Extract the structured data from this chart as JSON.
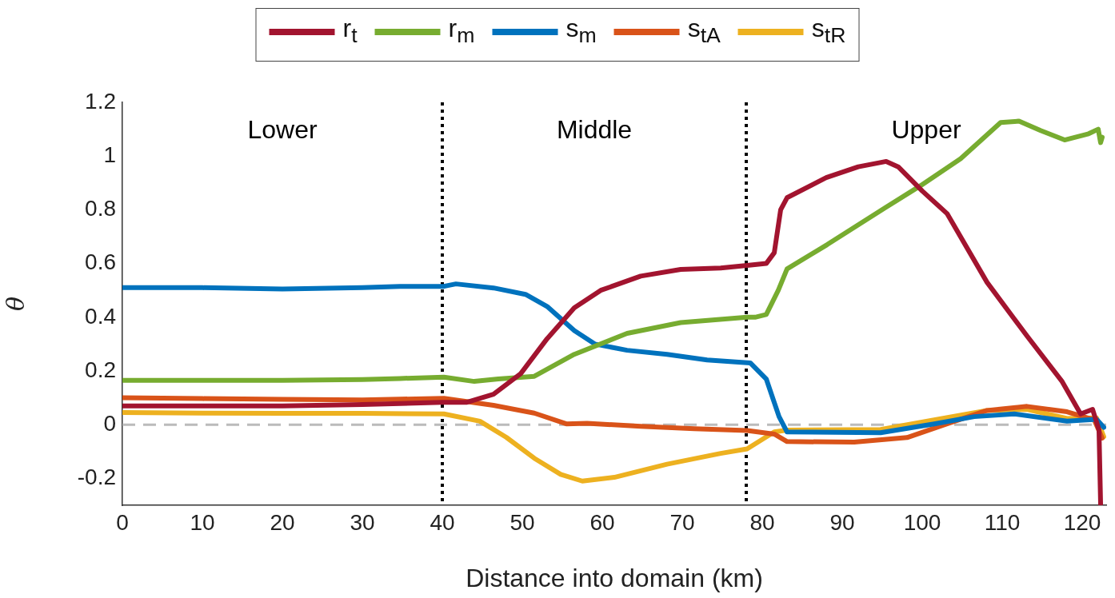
{
  "chart_data": {
    "type": "line",
    "xlabel": "Distance into domain (km)",
    "ylabel": "θ",
    "xlim": [
      0,
      123
    ],
    "xticks": [
      0,
      10,
      20,
      30,
      40,
      50,
      60,
      70,
      80,
      90,
      100,
      110,
      120
    ],
    "ylim": [
      -0.3,
      1.2
    ],
    "yticks": [
      -0.2,
      0,
      0.2,
      0.4,
      0.6,
      0.8,
      1,
      1.2
    ],
    "grid": false,
    "legend": "top",
    "marker": "none",
    "line_style": "solid",
    "ref_lines": [
      {
        "axis": "x",
        "value": 40,
        "color": "#000000",
        "line_style": "dotted"
      },
      {
        "axis": "x",
        "value": 78,
        "color": "#000000",
        "line_style": "dotted"
      },
      {
        "axis": "y",
        "value": 0,
        "color": "#bbbbbb",
        "line_style": "dashed"
      }
    ],
    "annotations": [
      "Lower",
      "Middle",
      "Upper"
    ],
    "series": [
      {
        "name": "r$_{t}$",
        "color": "#a2142f",
        "x": [
          0,
          10,
          20,
          30,
          40,
          43,
          46.4,
          49.8,
          53.1,
          56.5,
          59.8,
          64.8,
          69.8,
          74.8,
          78.1,
          80.5,
          81.5,
          82.3,
          83.1,
          88,
          92,
          95.5,
          97,
          100,
          103.1,
          108.1,
          113.1,
          117.5,
          119.8,
          121.3,
          122.1,
          122.3
        ],
        "values": [
          0.07,
          0.07,
          0.07,
          0.075,
          0.083,
          0.083,
          0.113,
          0.19,
          0.32,
          0.435,
          0.5,
          0.553,
          0.578,
          0.583,
          0.593,
          0.6,
          0.64,
          0.8,
          0.845,
          0.92,
          0.96,
          0.98,
          0.96,
          0.87,
          0.786,
          0.53,
          0.33,
          0.16,
          0.04,
          0.057,
          -0.02,
          -0.295
        ]
      },
      {
        "name": "r$_{m}$",
        "color": "#77ac30",
        "x": [
          0,
          10,
          20,
          30,
          34.7,
          40.2,
          44,
          47,
          51.5,
          56.5,
          63.1,
          69.8,
          78.1,
          79.1,
          80.5,
          82,
          83.1,
          88.1,
          95.5,
          99.8,
          104.8,
          109.8,
          112.1,
          114.8,
          117.8,
          120.8,
          122,
          122.3,
          122.5
        ],
        "values": [
          0.165,
          0.165,
          0.165,
          0.168,
          0.172,
          0.177,
          0.161,
          0.17,
          0.18,
          0.262,
          0.34,
          0.38,
          0.4,
          0.4,
          0.41,
          0.5,
          0.58,
          0.67,
          0.81,
          0.89,
          0.99,
          1.125,
          1.13,
          1.095,
          1.06,
          1.083,
          1.1,
          1.05,
          1.07
        ]
      },
      {
        "name": "s$_{m}$",
        "color": "#0072bd",
        "x": [
          0,
          10,
          20,
          30,
          34.7,
          40.2,
          41.7,
          46.4,
          50.4,
          53.1,
          56.5,
          59.1,
          63.1,
          68.1,
          73.1,
          78.5,
          80.5,
          82.1,
          83.1,
          94.8,
          101.5,
          106.5,
          111.5,
          118.1,
          121.8,
          122.7
        ],
        "values": [
          0.51,
          0.51,
          0.505,
          0.51,
          0.515,
          0.515,
          0.524,
          0.509,
          0.485,
          0.44,
          0.35,
          0.3,
          0.277,
          0.262,
          0.241,
          0.23,
          0.17,
          0.03,
          -0.027,
          -0.03,
          0.003,
          0.03,
          0.04,
          0.013,
          0.02,
          -0.01
        ]
      },
      {
        "name": "s$_{tA}$",
        "color": "#d95319",
        "x": [
          0,
          10,
          20,
          30,
          34.7,
          40.2,
          46.4,
          51.5,
          55.5,
          58.1,
          64.8,
          71.5,
          78.1,
          81.5,
          83.1,
          91.5,
          98.1,
          103.1,
          108.1,
          113.1,
          118.1,
          121.5,
          122.5
        ],
        "values": [
          0.1,
          0.097,
          0.094,
          0.092,
          0.095,
          0.098,
          0.072,
          0.043,
          0.003,
          0.005,
          -0.006,
          -0.015,
          -0.022,
          -0.035,
          -0.063,
          -0.065,
          -0.048,
          0.003,
          0.053,
          0.068,
          0.048,
          0.018,
          -0.05
        ]
      },
      {
        "name": "s$_{tR}$",
        "color": "#edb120",
        "x": [
          0,
          10,
          20,
          30,
          40.2,
          44.7,
          48,
          51.5,
          54.8,
          57.5,
          61.5,
          68.1,
          74.8,
          78.1,
          81.5,
          83.1,
          94.8,
          101.5,
          108.1,
          113.1,
          118.1,
          121.8,
          122.7
        ],
        "values": [
          0.045,
          0.043,
          0.042,
          0.042,
          0.04,
          0.013,
          -0.047,
          -0.125,
          -0.185,
          -0.21,
          -0.196,
          -0.147,
          -0.107,
          -0.09,
          -0.027,
          -0.02,
          -0.018,
          0.018,
          0.053,
          0.057,
          0.023,
          0.025,
          -0.045
        ]
      }
    ]
  }
}
